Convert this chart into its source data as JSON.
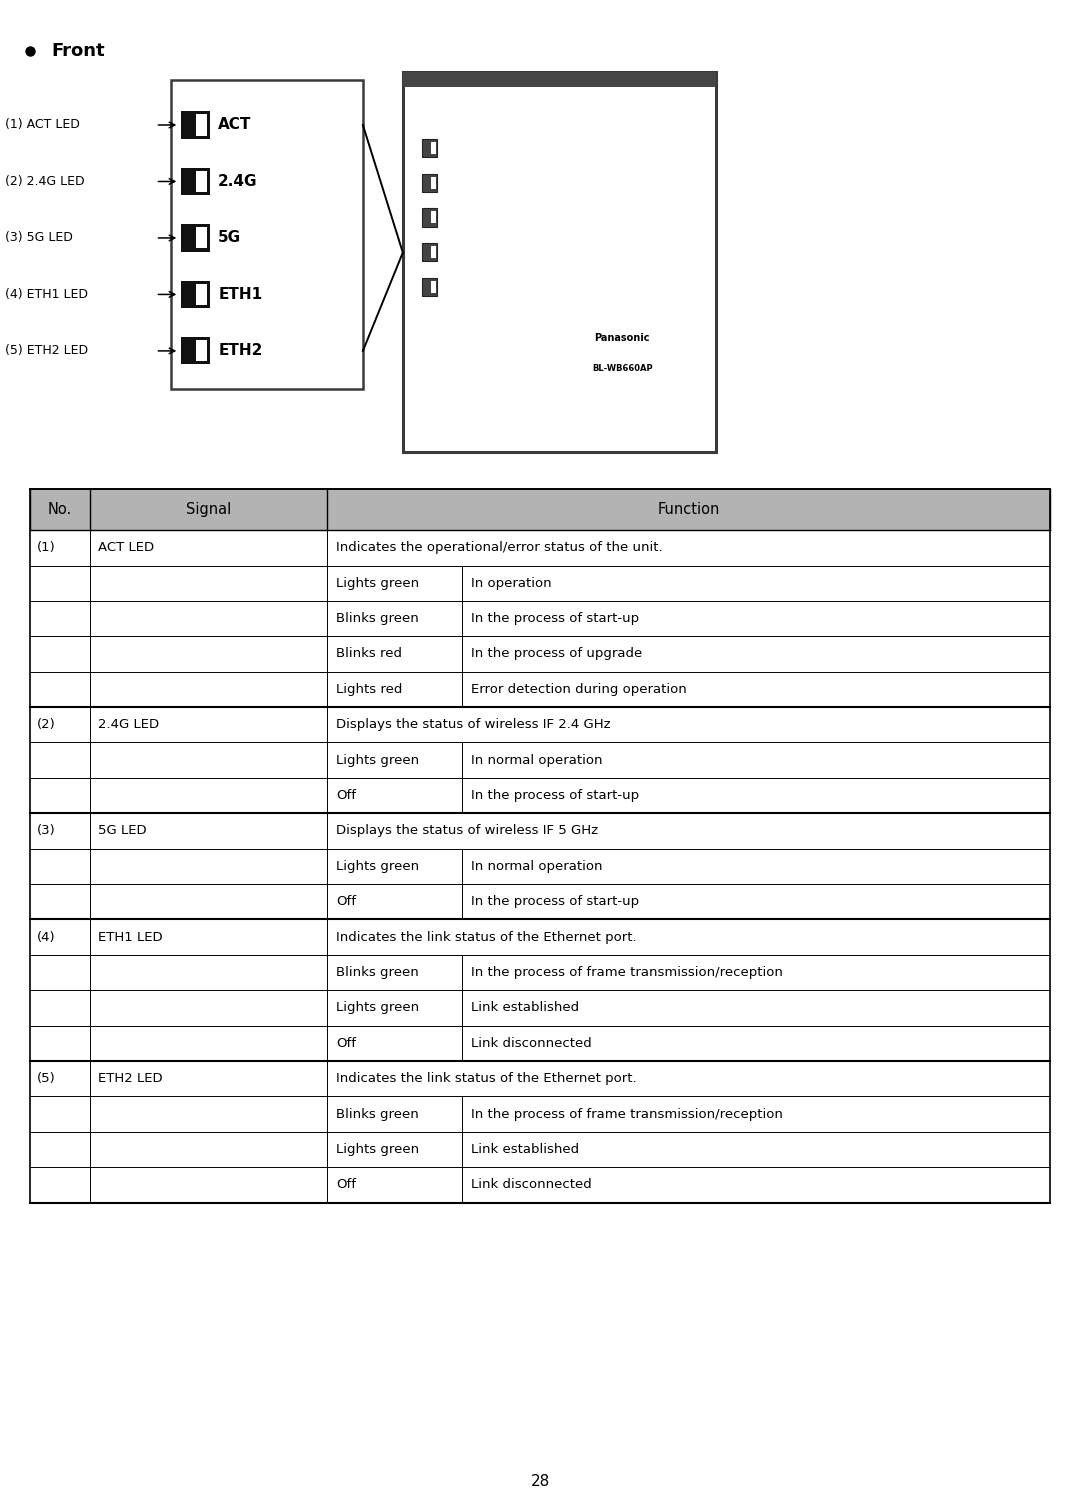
{
  "page_number": "28",
  "bullet_label": "Front",
  "bg_color": "#ffffff",
  "header_bg": "#b0b0b0",
  "header_row": [
    "No.",
    "Signal",
    "Function"
  ],
  "rows": [
    {
      "no": "(1)",
      "signal": "ACT LED",
      "sub_col1": "",
      "sub_col2": "Indicates the operational/error status of the unit.",
      "type": "main"
    },
    {
      "no": "",
      "signal": "",
      "sub_col1": "Lights green",
      "sub_col2": "In operation",
      "type": "sub"
    },
    {
      "no": "",
      "signal": "",
      "sub_col1": "Blinks green",
      "sub_col2": "In the process of start-up",
      "type": "sub"
    },
    {
      "no": "",
      "signal": "",
      "sub_col1": "Blinks red",
      "sub_col2": "In the process of upgrade",
      "type": "sub"
    },
    {
      "no": "",
      "signal": "",
      "sub_col1": "Lights red",
      "sub_col2": "Error detection during operation",
      "type": "sub"
    },
    {
      "no": "(2)",
      "signal": "2.4G LED",
      "sub_col1": "",
      "sub_col2": "Displays the status of wireless IF 2.4 GHz",
      "type": "main"
    },
    {
      "no": "",
      "signal": "",
      "sub_col1": "Lights green",
      "sub_col2": "In normal operation",
      "type": "sub"
    },
    {
      "no": "",
      "signal": "",
      "sub_col1": "Off",
      "sub_col2": "In the process of start-up",
      "type": "sub"
    },
    {
      "no": "(3)",
      "signal": "5G LED",
      "sub_col1": "",
      "sub_col2": "Displays the status of wireless IF 5 GHz",
      "type": "main"
    },
    {
      "no": "",
      "signal": "",
      "sub_col1": "Lights green",
      "sub_col2": "In normal operation",
      "type": "sub"
    },
    {
      "no": "",
      "signal": "",
      "sub_col1": "Off",
      "sub_col2": "In the process of start-up",
      "type": "sub"
    },
    {
      "no": "(4)",
      "signal": "ETH1 LED",
      "sub_col1": "",
      "sub_col2": "Indicates the link status of the Ethernet port.",
      "type": "main"
    },
    {
      "no": "",
      "signal": "",
      "sub_col1": "Blinks green",
      "sub_col2": "In the process of frame transmission/reception",
      "type": "sub"
    },
    {
      "no": "",
      "signal": "",
      "sub_col1": "Lights green",
      "sub_col2": "Link established",
      "type": "sub"
    },
    {
      "no": "",
      "signal": "",
      "sub_col1": "Off",
      "sub_col2": "Link disconnected",
      "type": "sub"
    },
    {
      "no": "(5)",
      "signal": "ETH2 LED",
      "sub_col1": "",
      "sub_col2": "Indicates the link status of the Ethernet port.",
      "type": "main"
    },
    {
      "no": "",
      "signal": "",
      "sub_col1": "Blinks green",
      "sub_col2": "In the process of frame transmission/reception",
      "type": "sub"
    },
    {
      "no": "",
      "signal": "",
      "sub_col1": "Lights green",
      "sub_col2": "Link established",
      "type": "sub"
    },
    {
      "no": "",
      "signal": "",
      "sub_col1": "Off",
      "sub_col2": "Link disconnected",
      "type": "sub"
    }
  ],
  "led_labels": [
    "(1) ACT LED",
    "(2) 2.4G LED",
    "(3) 5G LED",
    "(4) ETH1 LED",
    "(5) ETH2 LED"
  ],
  "led_names": [
    "ACT",
    "2.4G",
    "5G",
    "ETH1",
    "ETH2"
  ],
  "font_size_body": 9.5,
  "font_size_header": 10.5,
  "font_size_label": 9.0,
  "font_size_led": 11.0,
  "font_size_title": 13.0,
  "font_size_page": 11.0
}
